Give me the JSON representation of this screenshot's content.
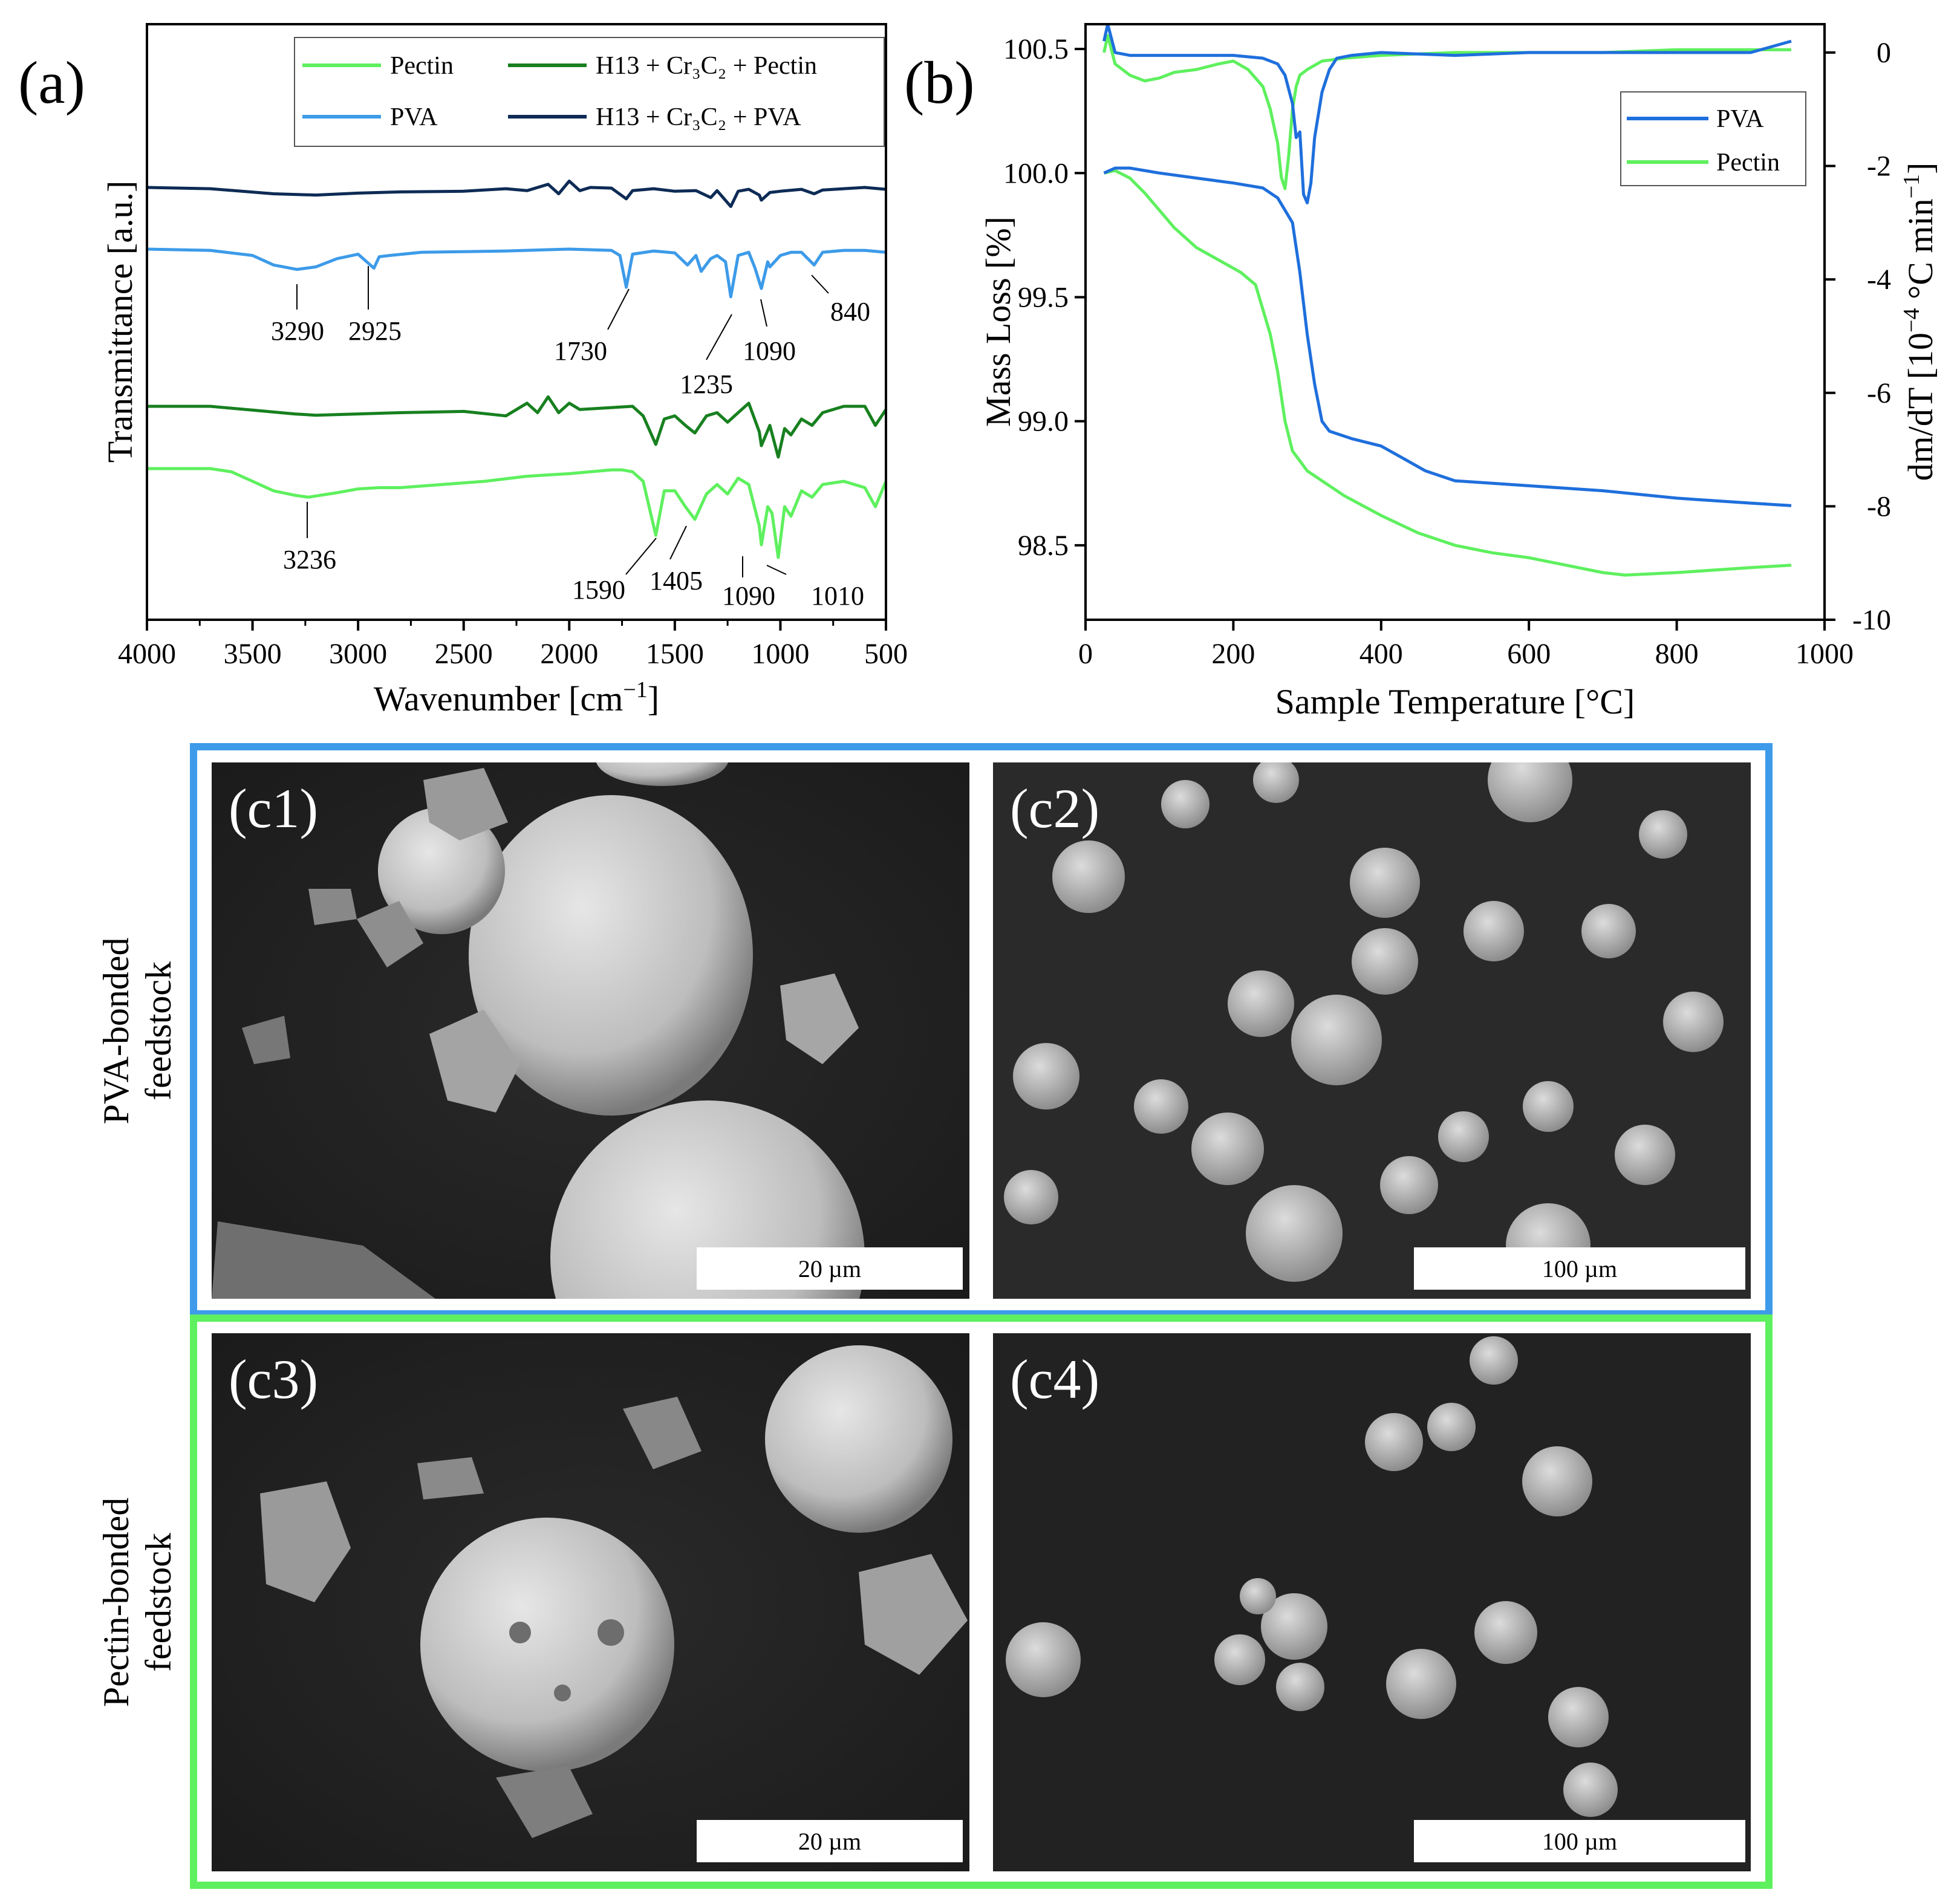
{
  "colors": {
    "pectin": "#5ef05e",
    "h13_pectin": "#17801f",
    "pva": "#3d9be9",
    "h13_pva": "#0d2b55",
    "tga_pva": "#1f6fdc",
    "tga_pectin": "#5ef05e",
    "pva_frame": "#3d9be9",
    "pectin_frame": "#5ef05e"
  },
  "panel_a": {
    "letter": "(a)",
    "xlabel": "Wavenumber [cm",
    "xlabel_sup": "−1",
    "xlabel_end": "]",
    "ylabel": "Transmittance [a.u.]",
    "xticks": [
      "4000",
      "3500",
      "3000",
      "2500",
      "2000",
      "1500",
      "1000",
      "500"
    ],
    "legend": {
      "pectin": "Pectin",
      "pva": "PVA",
      "h13_pectin": "H13 + Cr₃C₂ + Pectin",
      "h13_pva": "H13 + Cr₃C₂ + PVA"
    },
    "peak_labels": {
      "p3290": "3290",
      "p2925": "2925",
      "p1730": "1730",
      "p1235": "1235",
      "p1090a": "1090",
      "p840": "840",
      "p3236": "3236",
      "p1590": "1590",
      "p1405": "1405",
      "p1090b": "1090",
      "p1010": "1010"
    }
  },
  "panel_b": {
    "letter": "(b)",
    "xlabel": "Sample Temperature [°C]",
    "ylabel": "Mass Loss [%]",
    "y2label": "dm/dT [10",
    "y2label_sup": "−4",
    "y2label_mid": " °C min",
    "y2label_sup2": "−1",
    "y2label_end": "]",
    "xticks": [
      "0",
      "200",
      "400",
      "600",
      "800",
      "1000"
    ],
    "yticks": [
      "100.5",
      "100.0",
      "99.5",
      "99.0",
      "98.5"
    ],
    "y2ticks": [
      "0",
      "-2",
      "-4",
      "-6",
      "-8",
      "-10"
    ],
    "legend": {
      "pva": "PVA",
      "pectin": "Pectin"
    }
  },
  "chart_data": [
    {
      "type": "line",
      "panel": "a",
      "xlabel": "Wavenumber [cm−1]",
      "ylabel": "Transmittance [a.u.]",
      "xlim": [
        4000,
        500
      ],
      "x_reversed": true,
      "series": [
        {
          "name": "H13 + Cr₃C₂ + PVA",
          "offset": 3.0,
          "x": [
            4000,
            3700,
            3400,
            3200,
            3000,
            2800,
            2500,
            2300,
            2200,
            2100,
            2050,
            2000,
            1950,
            1900,
            1800,
            1730,
            1700,
            1600,
            1500,
            1400,
            1330,
            1300,
            1235,
            1200,
            1150,
            1100,
            1090,
            1050,
            1000,
            900,
            840,
            800,
            700,
            600,
            500
          ],
          "y": [
            0.0,
            -0.02,
            -0.1,
            -0.12,
            -0.09,
            -0.07,
            -0.06,
            -0.02,
            -0.05,
            0.05,
            -0.1,
            0.1,
            -0.05,
            0.0,
            -0.01,
            -0.18,
            -0.05,
            -0.02,
            -0.06,
            -0.05,
            -0.16,
            -0.05,
            -0.3,
            -0.06,
            -0.03,
            -0.12,
            -0.2,
            -0.08,
            -0.06,
            -0.03,
            -0.1,
            -0.04,
            -0.02,
            0.0,
            -0.03
          ]
        },
        {
          "name": "PVA",
          "offset": 2.0,
          "x": [
            4000,
            3700,
            3500,
            3400,
            3290,
            3200,
            3100,
            3000,
            2925,
            2900,
            2850,
            2700,
            2500,
            2300,
            2000,
            1800,
            1760,
            1730,
            1700,
            1600,
            1500,
            1440,
            1400,
            1375,
            1330,
            1300,
            1260,
            1235,
            1200,
            1150,
            1120,
            1090,
            1060,
            1050,
            1000,
            950,
            900,
            840,
            800,
            700,
            600,
            500
          ],
          "y": [
            0.0,
            -0.02,
            -0.1,
            -0.25,
            -0.32,
            -0.28,
            -0.15,
            -0.08,
            -0.3,
            -0.12,
            -0.1,
            -0.05,
            -0.04,
            -0.03,
            0.0,
            -0.02,
            -0.1,
            -0.6,
            -0.08,
            -0.03,
            -0.06,
            -0.25,
            -0.1,
            -0.35,
            -0.15,
            -0.1,
            -0.2,
            -0.75,
            -0.1,
            -0.05,
            -0.3,
            -0.62,
            -0.2,
            -0.28,
            -0.1,
            -0.05,
            -0.05,
            -0.25,
            -0.05,
            -0.02,
            -0.02,
            -0.05
          ]
        },
        {
          "name": "H13 + Cr₃C₂ + Pectin",
          "offset": 0.5,
          "x": [
            4000,
            3700,
            3500,
            3300,
            3200,
            3000,
            2800,
            2500,
            2300,
            2200,
            2150,
            2100,
            2050,
            2000,
            1950,
            1800,
            1700,
            1650,
            1590,
            1550,
            1500,
            1450,
            1405,
            1350,
            1300,
            1250,
            1200,
            1150,
            1100,
            1090,
            1050,
            1010,
            980,
            950,
            900,
            850,
            800,
            700,
            600,
            550,
            500
          ],
          "y": [
            0.0,
            0.0,
            -0.06,
            -0.12,
            -0.14,
            -0.12,
            -0.1,
            -0.08,
            -0.15,
            0.05,
            -0.1,
            0.15,
            -0.1,
            0.05,
            -0.05,
            -0.02,
            0.0,
            -0.15,
            -0.6,
            -0.2,
            -0.15,
            -0.3,
            -0.42,
            -0.15,
            -0.1,
            -0.25,
            -0.1,
            0.05,
            -0.4,
            -0.62,
            -0.3,
            -0.8,
            -0.35,
            -0.45,
            -0.2,
            -0.3,
            -0.1,
            0.0,
            0.0,
            -0.3,
            -0.05
          ]
        },
        {
          "name": "Pectin",
          "offset": -0.5,
          "x": [
            4000,
            3700,
            3600,
            3500,
            3400,
            3300,
            3236,
            3100,
            3000,
            2900,
            2800,
            2600,
            2400,
            2200,
            2000,
            1800,
            1750,
            1700,
            1650,
            1590,
            1550,
            1500,
            1450,
            1405,
            1350,
            1300,
            1250,
            1200,
            1150,
            1100,
            1090,
            1060,
            1040,
            1010,
            980,
            950,
            900,
            850,
            800,
            700,
            600,
            550,
            500
          ],
          "y": [
            0.0,
            0.0,
            -0.05,
            -0.2,
            -0.35,
            -0.42,
            -0.45,
            -0.38,
            -0.32,
            -0.3,
            -0.3,
            -0.25,
            -0.2,
            -0.12,
            -0.08,
            -0.02,
            -0.02,
            -0.05,
            -0.2,
            -1.05,
            -0.35,
            -0.35,
            -0.6,
            -0.8,
            -0.4,
            -0.25,
            -0.4,
            -0.15,
            -0.25,
            -0.9,
            -1.2,
            -0.6,
            -0.7,
            -1.4,
            -0.6,
            -0.75,
            -0.35,
            -0.45,
            -0.25,
            -0.2,
            -0.3,
            -0.6,
            -0.2
          ]
        }
      ]
    },
    {
      "type": "line",
      "panel": "b",
      "xlabel": "Sample Temperature [°C]",
      "ylabel": "Mass Loss [%]",
      "y2label": "dm/dT [10−4 °C min−1]",
      "xlim": [
        0,
        1000
      ],
      "ylim": [
        98.2,
        100.6
      ],
      "y2lim": [
        -10,
        0.5
      ],
      "legend": "top-right",
      "series": [
        {
          "name": "PVA",
          "axis": "left",
          "x": [
            25,
            40,
            60,
            100,
            150,
            200,
            240,
            260,
            280,
            290,
            300,
            310,
            320,
            330,
            340,
            360,
            400,
            430,
            460,
            500,
            550,
            600,
            700,
            800,
            900,
            955
          ],
          "y": [
            100.0,
            100.02,
            100.02,
            100.0,
            99.98,
            99.96,
            99.94,
            99.9,
            99.8,
            99.6,
            99.35,
            99.15,
            99.0,
            98.96,
            98.95,
            98.93,
            98.9,
            98.85,
            98.8,
            98.76,
            98.75,
            98.74,
            98.72,
            98.69,
            98.67,
            98.66
          ]
        },
        {
          "name": "Pectin",
          "axis": "left",
          "x": [
            25,
            40,
            60,
            80,
            100,
            120,
            150,
            180,
            210,
            230,
            250,
            260,
            270,
            280,
            290,
            300,
            320,
            350,
            400,
            450,
            500,
            550,
            600,
            650,
            700,
            730,
            800,
            900,
            955
          ],
          "y": [
            100.0,
            100.01,
            99.98,
            99.92,
            99.85,
            99.78,
            99.7,
            99.65,
            99.6,
            99.55,
            99.35,
            99.2,
            99.0,
            98.88,
            98.84,
            98.8,
            98.76,
            98.7,
            98.62,
            98.55,
            98.5,
            98.47,
            98.45,
            98.42,
            98.39,
            98.38,
            98.39,
            98.41,
            98.42
          ]
        },
        {
          "name": "PVA dm/dT",
          "axis": "right",
          "x": [
            25,
            30,
            40,
            60,
            100,
            150,
            200,
            240,
            260,
            270,
            280,
            285,
            290,
            295,
            300,
            305,
            310,
            320,
            330,
            340,
            360,
            400,
            500,
            600,
            700,
            800,
            900,
            955
          ],
          "y": [
            0.2,
            0.5,
            0.0,
            -0.05,
            -0.05,
            -0.05,
            -0.05,
            -0.1,
            -0.2,
            -0.4,
            -0.9,
            -1.5,
            -1.4,
            -2.5,
            -2.65,
            -2.3,
            -1.5,
            -0.7,
            -0.3,
            -0.1,
            -0.05,
            0.0,
            -0.05,
            0.0,
            0.0,
            0.0,
            0.0,
            0.2
          ]
        },
        {
          "name": "Pectin dm/dT",
          "axis": "right",
          "x": [
            25,
            30,
            40,
            60,
            80,
            100,
            120,
            150,
            180,
            200,
            220,
            240,
            250,
            260,
            265,
            270,
            275,
            280,
            285,
            290,
            300,
            320,
            350,
            400,
            500,
            600,
            700,
            800,
            900,
            955
          ],
          "y": [
            0.0,
            0.3,
            -0.2,
            -0.4,
            -0.5,
            -0.45,
            -0.35,
            -0.3,
            -0.2,
            -0.15,
            -0.3,
            -0.6,
            -1.0,
            -1.6,
            -2.2,
            -2.4,
            -1.8,
            -1.0,
            -0.6,
            -0.4,
            -0.3,
            -0.15,
            -0.1,
            -0.05,
            0.0,
            0.0,
            0.0,
            0.05,
            0.05,
            0.05
          ]
        }
      ]
    }
  ],
  "sem": {
    "c1": {
      "label": "(c1)",
      "scale": "20 µm"
    },
    "c2": {
      "label": "(c2)",
      "scale": "100 µm"
    },
    "c3": {
      "label": "(c3)",
      "scale": "20 µm"
    },
    "c4": {
      "label": "(c4)",
      "scale": "100 µm"
    },
    "pva_side_label": [
      "PVA-bonded",
      "feedstock"
    ],
    "pectin_side_label": [
      "Pectin-bonded",
      "feedstock"
    ]
  }
}
